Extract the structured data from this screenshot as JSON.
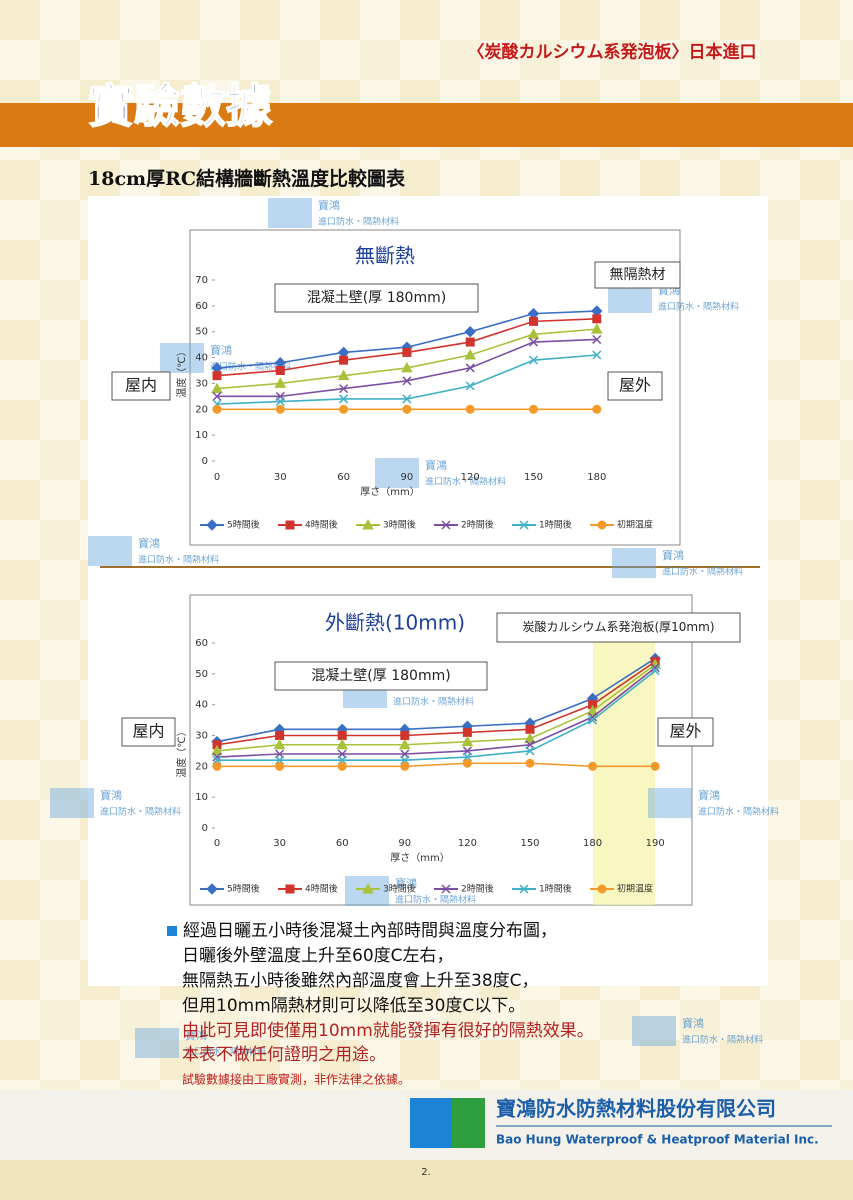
{
  "header": {
    "brand": "〈炭酸カルシウム系発泡板〉日本進口",
    "title": "實驗數據",
    "subtitle": "18cm厚RC結構牆斷熱溫度比較圖表"
  },
  "watermark": {
    "name": "寶鴻",
    "tagline": "進口防水・隔熱材料"
  },
  "chart_data": [
    {
      "type": "line",
      "title": "無斷熱",
      "x_label": "厚さ（mm）",
      "y_label": "温度（℃）",
      "categories": [
        "0",
        "30",
        "60",
        "90",
        "120",
        "150",
        "180"
      ],
      "ylim": [
        0,
        70
      ],
      "yticks": [
        0,
        10,
        20,
        30,
        40,
        50,
        60,
        70
      ],
      "grid": false,
      "annotations": [
        "混凝土壁(厚 180mm)",
        "無隔熱材",
        "屋内",
        "屋外"
      ],
      "series": [
        {
          "name": "5時間後",
          "color": "#3a6fc4",
          "values": [
            36,
            38,
            42,
            44,
            50,
            57,
            58
          ]
        },
        {
          "name": "4時間後",
          "color": "#d0342c",
          "values": [
            33,
            35,
            39,
            42,
            46,
            54,
            55
          ]
        },
        {
          "name": "3時間後",
          "color": "#a8c23c",
          "values": [
            28,
            30,
            33,
            36,
            41,
            49,
            51
          ]
        },
        {
          "name": "2時間後",
          "color": "#7b4ea3",
          "values": [
            25,
            25,
            28,
            31,
            36,
            46,
            47
          ]
        },
        {
          "name": "1時間後",
          "color": "#3fb0c8",
          "values": [
            22,
            23,
            24,
            24,
            29,
            39,
            41
          ]
        },
        {
          "name": "初期温度",
          "color": "#f39a2b",
          "values": [
            20,
            20,
            20,
            20,
            20,
            20,
            20
          ]
        }
      ]
    },
    {
      "type": "line",
      "title": "外斷熱(10mm)",
      "x_label": "厚さ（mm）",
      "y_label": "温度（℃）",
      "categories": [
        "0",
        "30",
        "60",
        "90",
        "120",
        "150",
        "180",
        "190"
      ],
      "ylim": [
        0,
        60
      ],
      "yticks": [
        0,
        10,
        20,
        30,
        40,
        50,
        60
      ],
      "grid": false,
      "annotations": [
        "炭酸カルシウム系発泡板(厚10mm)",
        "混凝土壁(厚 180mm)",
        "屋内",
        "屋外"
      ],
      "series": [
        {
          "name": "5時間後",
          "color": "#3a6fc4",
          "values": [
            28,
            32,
            32,
            32,
            33,
            34,
            42,
            55
          ]
        },
        {
          "name": "4時間後",
          "color": "#d0342c",
          "values": [
            27,
            30,
            30,
            30,
            31,
            32,
            40,
            54
          ]
        },
        {
          "name": "3時間後",
          "color": "#a8c23c",
          "values": [
            25,
            27,
            27,
            27,
            28,
            29,
            38,
            53
          ]
        },
        {
          "name": "2時間後",
          "color": "#7b4ea3",
          "values": [
            23,
            24,
            24,
            24,
            25,
            27,
            36,
            52
          ]
        },
        {
          "name": "1時間後",
          "color": "#3fb0c8",
          "values": [
            22,
            22,
            22,
            22,
            23,
            25,
            35,
            51
          ]
        },
        {
          "name": "初期温度",
          "color": "#f39a2b",
          "values": [
            20,
            20,
            20,
            20,
            21,
            21,
            20,
            20
          ]
        }
      ]
    }
  ],
  "body": {
    "lines": [
      "經過日曬五小時後混凝土內部時間與溫度分布圖，",
      "日曬後外壁溫度上升至60度C左右，",
      "無隔熱五小時後雖然內部溫度會上升至38度C，",
      "但用10mm隔熱材則可以降低至30度C以下。"
    ],
    "notes": [
      "由此可見即使僅用10mm就能發揮有很好的隔熱效果。",
      "本表不做任何證明之用途。"
    ],
    "disclaimer": "試驗數據接由工廠實測，非作法律之依據。"
  },
  "footer": {
    "company": "寶鴻防水防熱材料股份有限公司",
    "company_en": "Bao Hung Waterproof & Heatproof Material Inc.",
    "page": "2."
  }
}
